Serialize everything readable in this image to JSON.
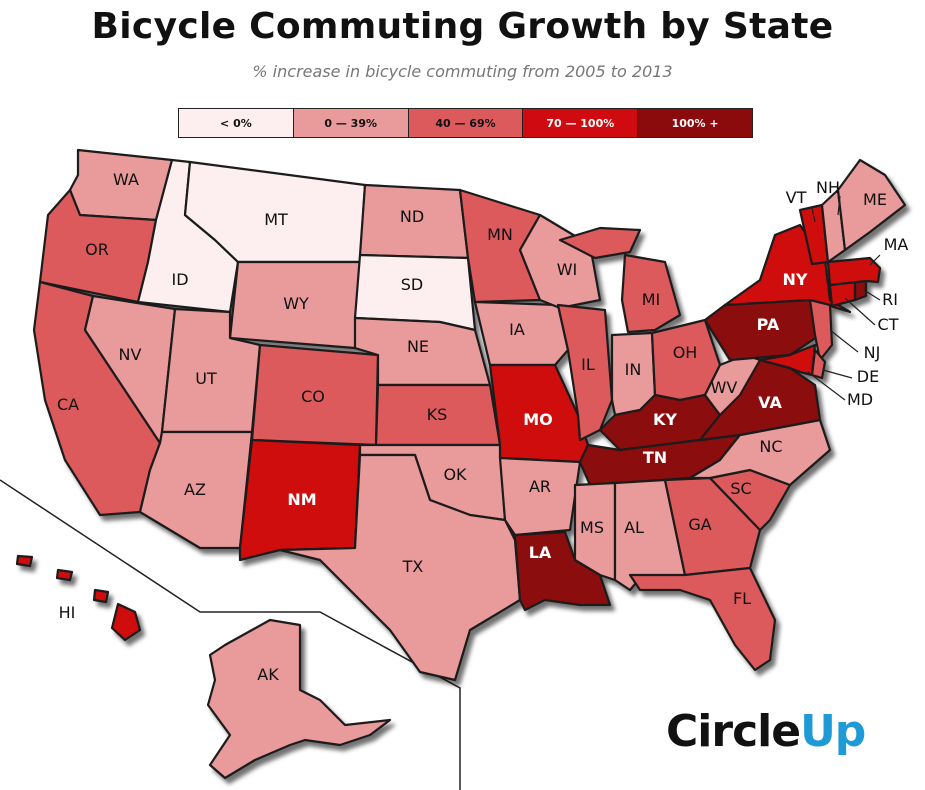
{
  "title": "Bicycle Commuting Growth by State",
  "subtitle": "% increase in bicycle commuting from 2005 to 2013",
  "legend": [
    {
      "label": "< 0%",
      "color": "#fdeef0"
    },
    {
      "label": "0 — 39%",
      "color": "#e99a9a"
    },
    {
      "label": "40 — 69%",
      "color": "#dc5a5c"
    },
    {
      "label": "70 — 100%",
      "color": "#cf0a10"
    },
    {
      "label": "100% +",
      "color": "#8b0a0c"
    }
  ],
  "logo": {
    "circle": "Circle",
    "up": "Up"
  },
  "states": {
    "WA": {
      "label": "WA",
      "bin": "0 — 39%"
    },
    "OR": {
      "label": "OR",
      "bin": "40 — 69%"
    },
    "CA": {
      "label": "CA",
      "bin": "40 — 69%"
    },
    "ID": {
      "label": "ID",
      "bin": "< 0%"
    },
    "NV": {
      "label": "NV",
      "bin": "0 — 39%"
    },
    "MT": {
      "label": "MT",
      "bin": "< 0%"
    },
    "WY": {
      "label": "WY",
      "bin": "0 — 39%"
    },
    "UT": {
      "label": "UT",
      "bin": "0 — 39%"
    },
    "AZ": {
      "label": "AZ",
      "bin": "0 — 39%"
    },
    "CO": {
      "label": "CO",
      "bin": "40 — 69%"
    },
    "NM": {
      "label": "NM",
      "bin": "70 — 100%"
    },
    "ND": {
      "label": "ND",
      "bin": "0 — 39%"
    },
    "SD": {
      "label": "SD",
      "bin": "< 0%"
    },
    "NE": {
      "label": "NE",
      "bin": "0 — 39%"
    },
    "KS": {
      "label": "KS",
      "bin": "40 — 69%"
    },
    "OK": {
      "label": "OK",
      "bin": "0 — 39%"
    },
    "TX": {
      "label": "TX",
      "bin": "0 — 39%"
    },
    "MN": {
      "label": "MN",
      "bin": "40 — 69%"
    },
    "IA": {
      "label": "IA",
      "bin": "0 — 39%"
    },
    "MO": {
      "label": "MO",
      "bin": "70 — 100%"
    },
    "AR": {
      "label": "AR",
      "bin": "0 — 39%"
    },
    "LA": {
      "label": "LA",
      "bin": "100% +"
    },
    "WI": {
      "label": "WI",
      "bin": "0 — 39%"
    },
    "IL": {
      "label": "IL",
      "bin": "40 — 69%"
    },
    "MI": {
      "label": "MI",
      "bin": "40 — 69%"
    },
    "IN": {
      "label": "IN",
      "bin": "0 — 39%"
    },
    "OH": {
      "label": "OH",
      "bin": "40 — 69%"
    },
    "KY": {
      "label": "KY",
      "bin": "100% +"
    },
    "TN": {
      "label": "TN",
      "bin": "100% +"
    },
    "MS": {
      "label": "MS",
      "bin": "0 — 39%"
    },
    "AL": {
      "label": "AL",
      "bin": "0 — 39%"
    },
    "GA": {
      "label": "GA",
      "bin": "40 — 69%"
    },
    "FL": {
      "label": "FL",
      "bin": "40 — 69%"
    },
    "SC": {
      "label": "SC",
      "bin": "40 — 69%"
    },
    "NC": {
      "label": "NC",
      "bin": "0 — 39%"
    },
    "VA": {
      "label": "VA",
      "bin": "100% +"
    },
    "WV": {
      "label": "WV",
      "bin": "0 — 39%"
    },
    "PA": {
      "label": "PA",
      "bin": "100% +"
    },
    "NY": {
      "label": "NY",
      "bin": "70 — 100%"
    },
    "NJ": {
      "label": "NJ",
      "bin": "40 — 69%"
    },
    "DE": {
      "label": "DE",
      "bin": "40 — 69%"
    },
    "MD": {
      "label": "MD",
      "bin": "70 — 100%"
    },
    "CT": {
      "label": "CT",
      "bin": "70 — 100%"
    },
    "RI": {
      "label": "RI",
      "bin": "100% +"
    },
    "MA": {
      "label": "MA",
      "bin": "70 — 100%"
    },
    "VT": {
      "label": "VT",
      "bin": "70 — 100%"
    },
    "NH": {
      "label": "NH",
      "bin": "0 — 39%"
    },
    "ME": {
      "label": "ME",
      "bin": "0 — 39%"
    },
    "AK": {
      "label": "AK",
      "bin": "0 — 39%"
    },
    "HI": {
      "label": "HI",
      "bin": "70 — 100%"
    }
  }
}
